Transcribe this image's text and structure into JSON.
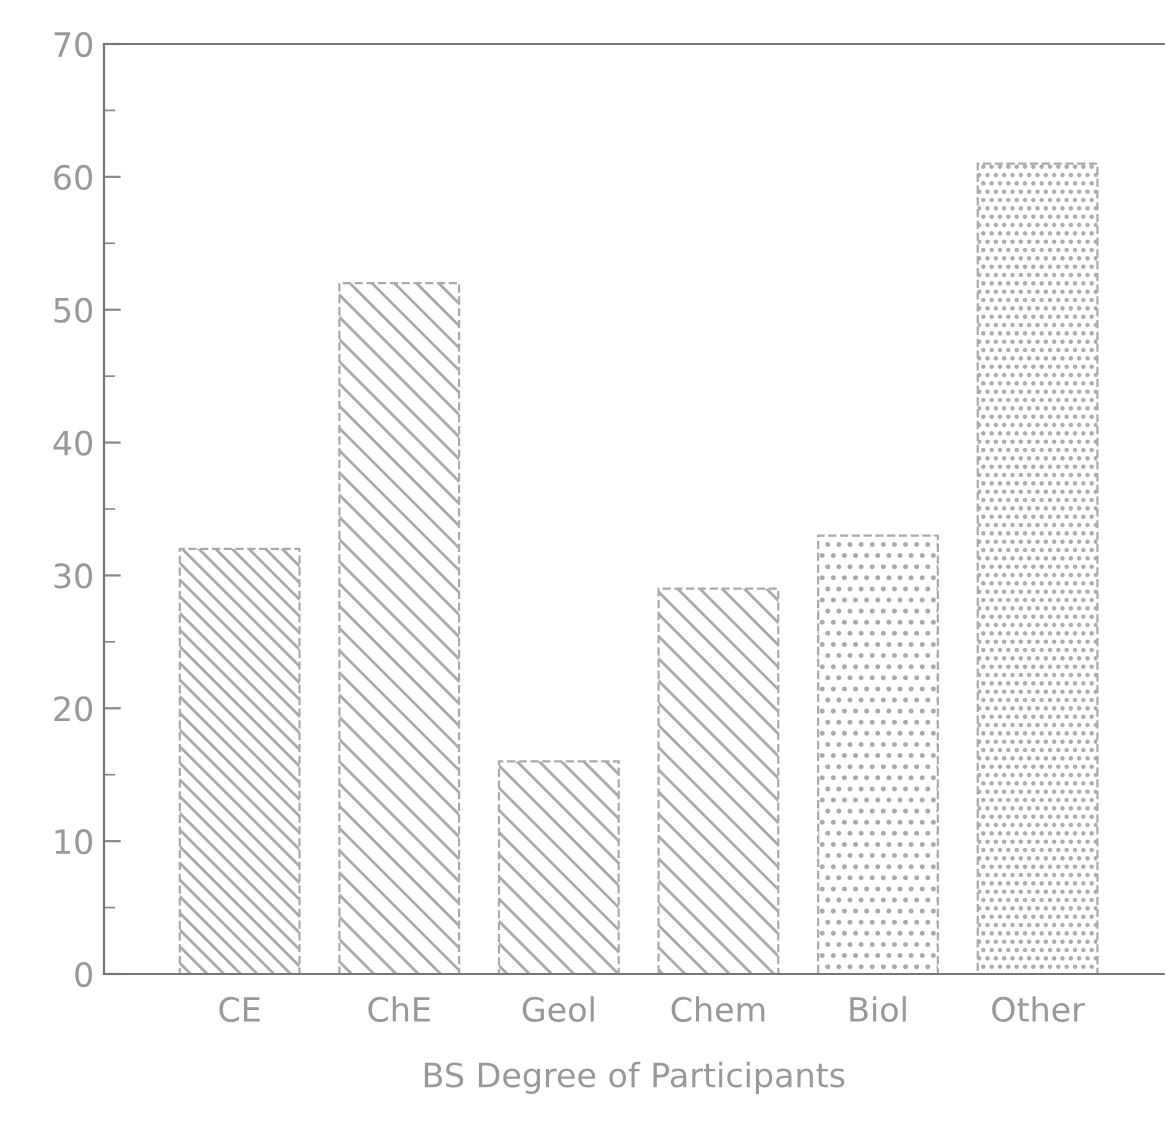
{
  "chart_data": {
    "type": "bar",
    "xlabel": "BS Degree of Participants",
    "categories": [
      "CE",
      "ChE",
      "Geol",
      "Chem",
      "Biol",
      "Other"
    ],
    "values": [
      32,
      52,
      16,
      29,
      33,
      61
    ],
    "color": "#aaaaaa",
    "ylim": [
      0,
      70
    ],
    "yticks": [
      0,
      10,
      20,
      30,
      40,
      50,
      60,
      70
    ],
    "grid": false
  }
}
